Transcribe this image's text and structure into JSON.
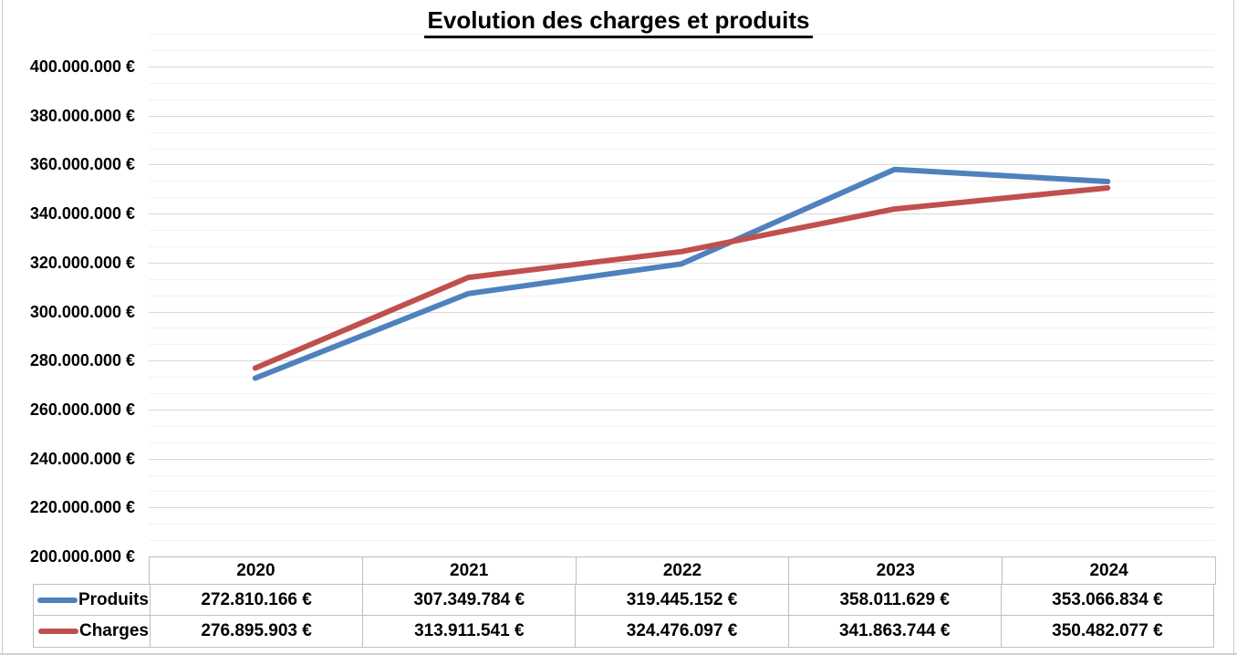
{
  "title": "Evolution des charges et produits",
  "chart_data": {
    "type": "line",
    "title": "Evolution des charges et produits",
    "categories": [
      "2020",
      "2021",
      "2022",
      "2023",
      "2024"
    ],
    "series": [
      {
        "name": "Produits",
        "color": "#4f81bd",
        "values": [
          272810166,
          307349784,
          319445152,
          358011629,
          353066834
        ],
        "formatted": [
          "272.810.166 €",
          "307.349.784 €",
          "319.445.152 €",
          "358.011.629 €",
          "353.066.834 €"
        ]
      },
      {
        "name": "Charges",
        "color": "#c0504d",
        "values": [
          276895903,
          313911541,
          324476097,
          341863744,
          350482077
        ],
        "formatted": [
          "276.895.903 €",
          "313.911.541 €",
          "324.476.097 €",
          "341.863.744 €",
          "350.482.077 €"
        ]
      }
    ],
    "y_axis": {
      "min": 200000000,
      "max": 400000000,
      "step": 20000000,
      "tick_labels": [
        "400.000.000 €",
        "380.000.000 €",
        "360.000.000 €",
        "340.000.000 €",
        "320.000.000 €",
        "300.000.000 €",
        "280.000.000 €",
        "260.000.000 €",
        "240.000.000 €",
        "220.000.000 €",
        "200.000.000 €"
      ]
    },
    "x_axis": {
      "tick_labels": [
        "2020",
        "2021",
        "2022",
        "2023",
        "2024"
      ]
    },
    "grid": true,
    "legend_position": "data-table-left"
  },
  "colors": {
    "produits_line": "#4f81bd",
    "charges_line": "#c0504d",
    "gridline_major": "#d8d8d8",
    "gridline_minor": "#f2f2f2",
    "table_border": "#bfbfbf",
    "title_text": "#000000"
  }
}
